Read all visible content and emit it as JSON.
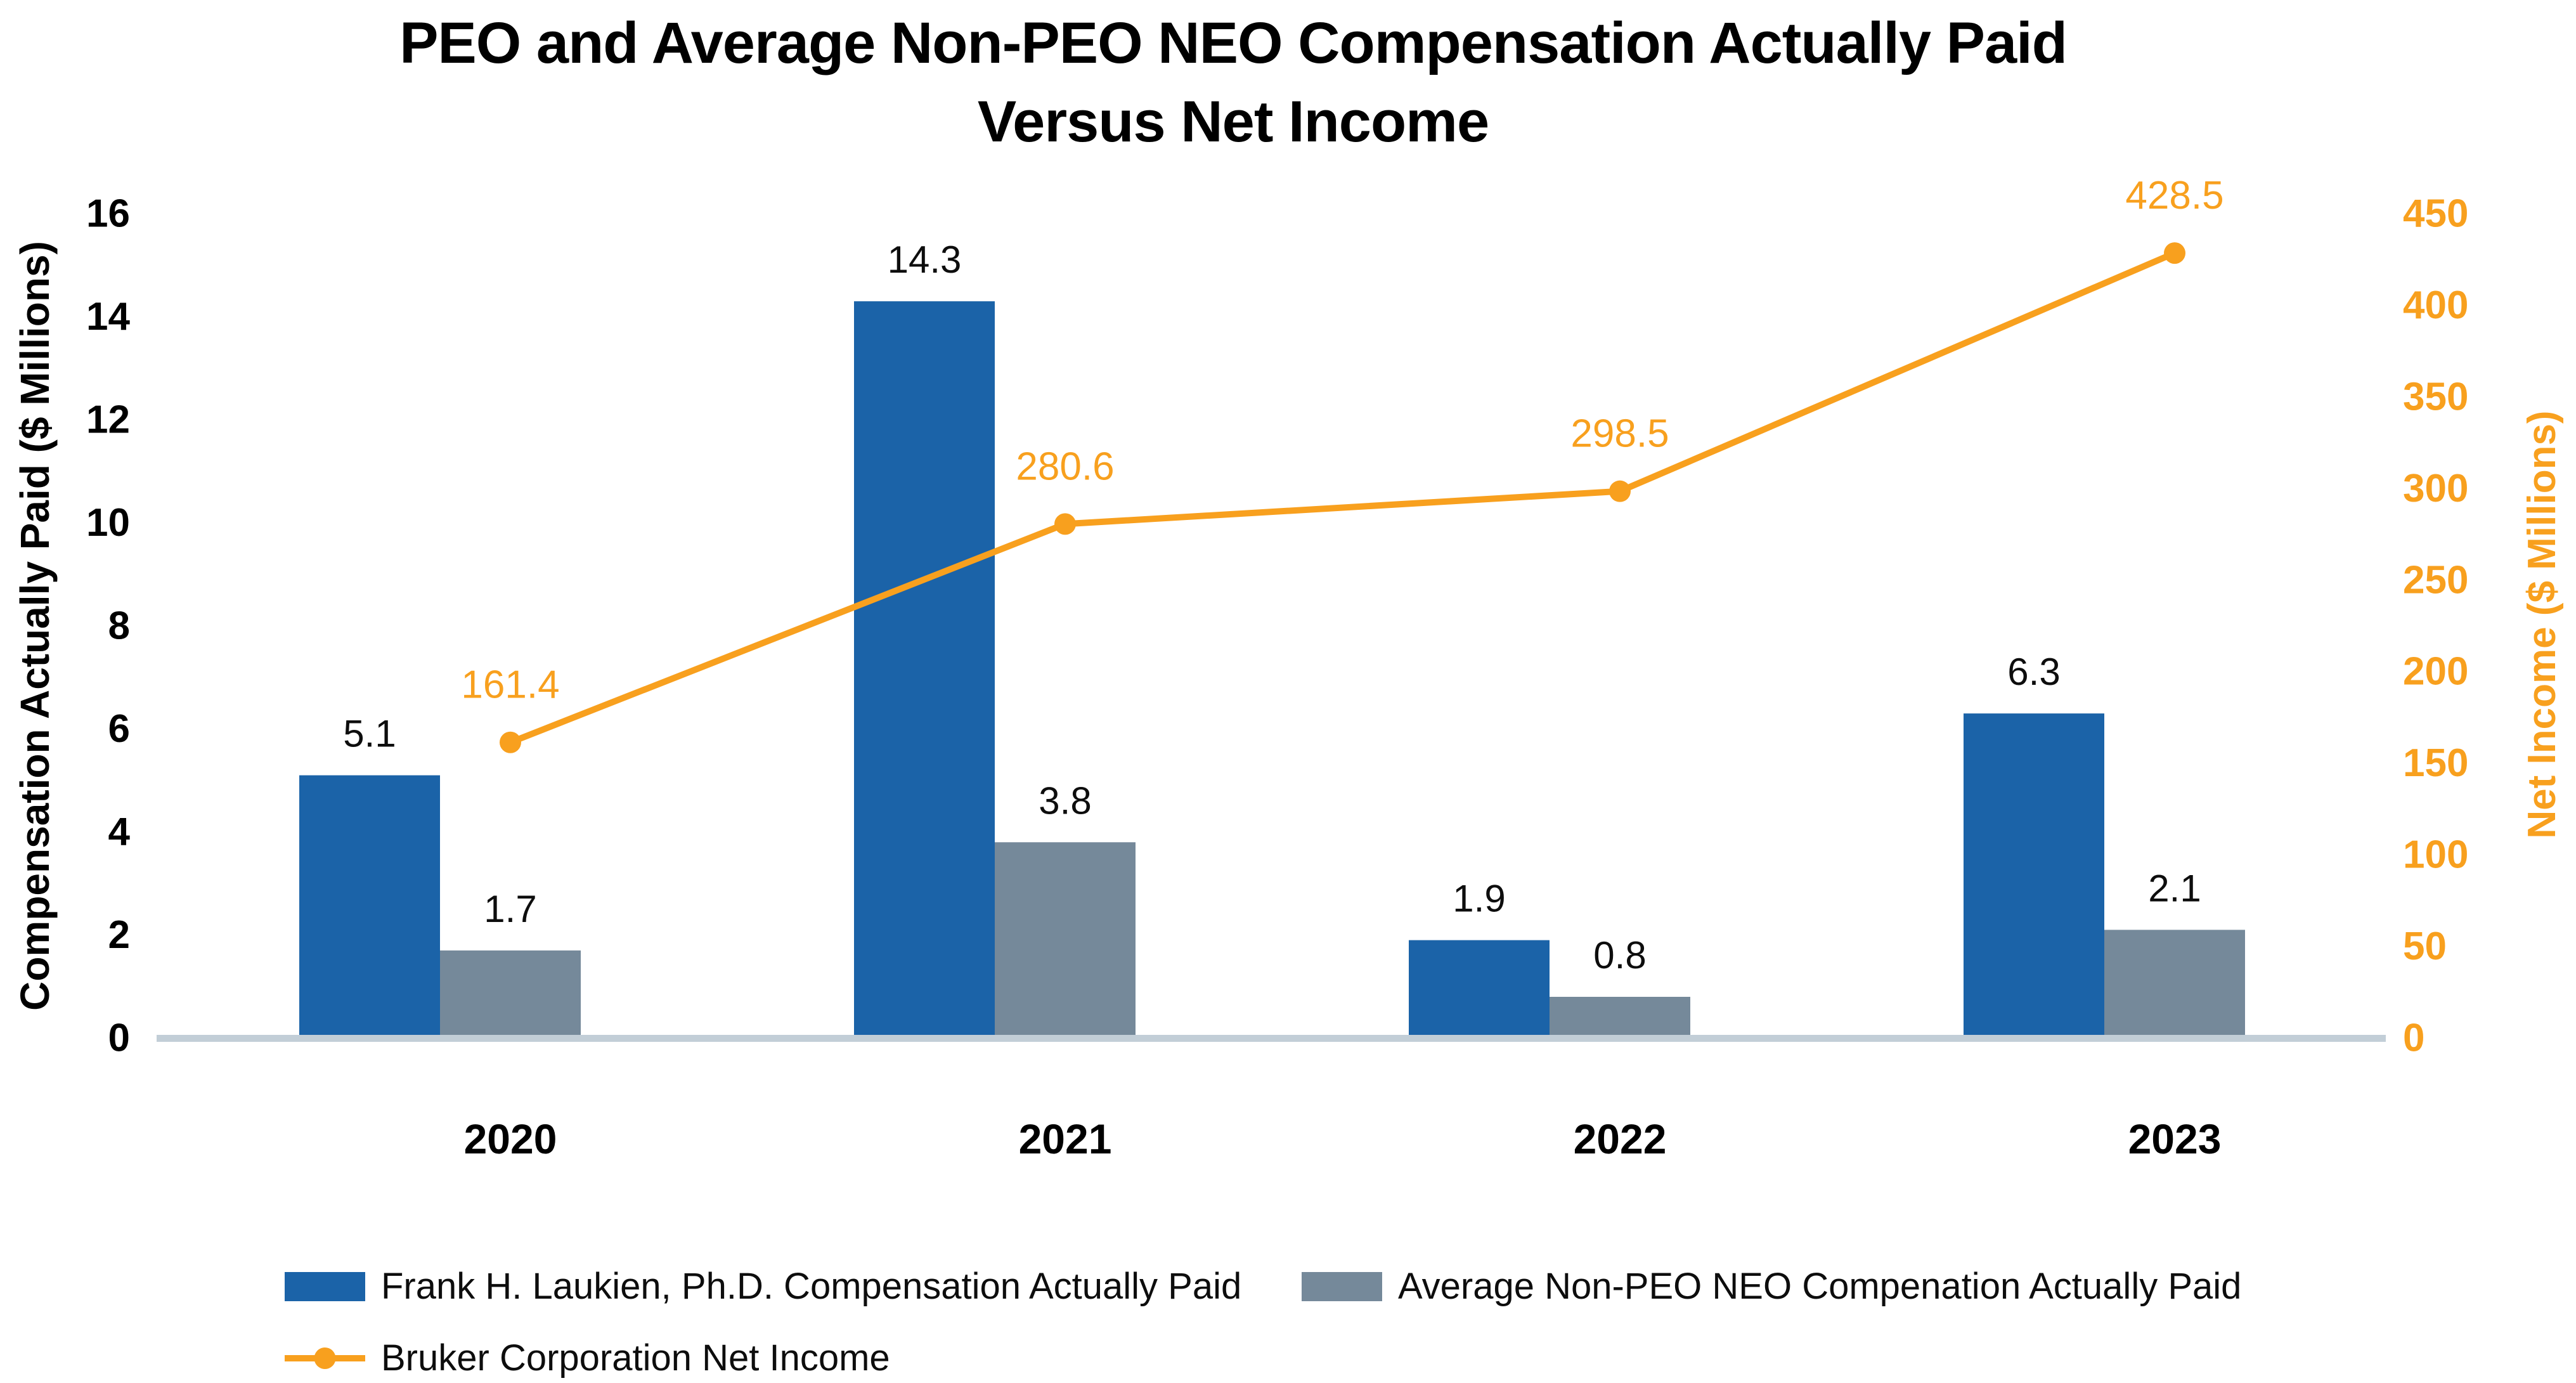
{
  "title": {
    "line1": "PEO and Average Non-PEO NEO Compensation Actually Paid",
    "line2": "Versus Net Income"
  },
  "chart_data": {
    "type": "combo",
    "subtype": "grouped-bar-with-line",
    "categories": [
      "2020",
      "2021",
      "2022",
      "2023"
    ],
    "series": [
      {
        "name": "Frank H. Laukien, Ph.D. Compensation Actually Paid",
        "type": "bar",
        "axis": "left",
        "color": "#1B63A8",
        "values": [
          5.1,
          14.3,
          1.9,
          6.3
        ],
        "labels": [
          "5.1",
          "14.3",
          "1.9",
          "6.3"
        ]
      },
      {
        "name": "Average Non-PEO NEO Compenation Actually Paid",
        "type": "bar",
        "axis": "left",
        "color": "#75899A",
        "values": [
          1.7,
          3.8,
          0.8,
          2.1
        ],
        "labels": [
          "1.7",
          "3.8",
          "0.8",
          "2.1"
        ]
      },
      {
        "name": "Bruker Corporation Net Income",
        "type": "line",
        "axis": "right",
        "color": "#F8A01E",
        "values": [
          161.4,
          280.6,
          298.5,
          428.5
        ],
        "labels": [
          "161.4",
          "280.6",
          "298.5",
          "428.5"
        ]
      }
    ],
    "left_axis": {
      "title": "Compensation Actually Paid ($ Millions)",
      "min": 0,
      "max": 16,
      "step": 2,
      "tick_labels": [
        "0",
        "2",
        "4",
        "6",
        "8",
        "10",
        "12",
        "14",
        "16"
      ],
      "color": "#000000"
    },
    "right_axis": {
      "title": "Net Income ($ Millions)",
      "min": 0,
      "max": 450,
      "step": 50,
      "tick_labels": [
        "0",
        "50",
        "100",
        "150",
        "200",
        "250",
        "300",
        "350",
        "400",
        "450"
      ],
      "color": "#F8A01E"
    },
    "grid": false,
    "data_labels": true,
    "legend_position": "bottom",
    "baseline_color": "#C2CED7",
    "label_text_color": "#0d0d0d"
  }
}
